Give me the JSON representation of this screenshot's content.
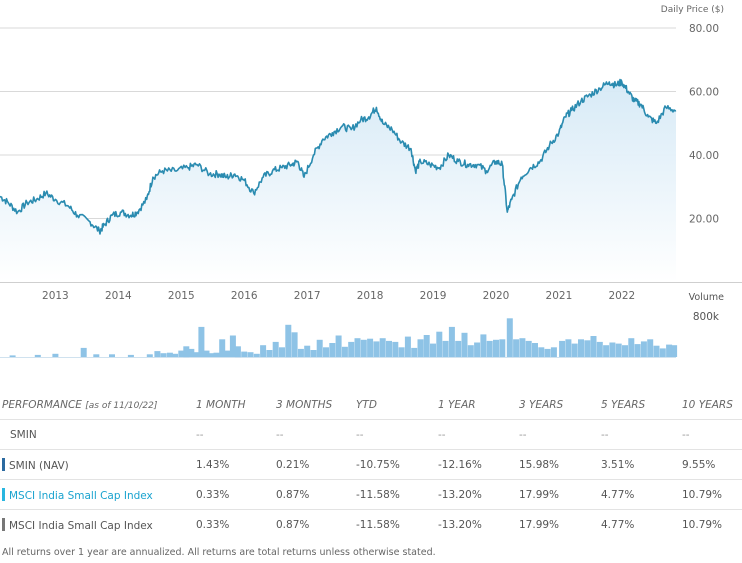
{
  "chart_data": [
    {
      "type": "area",
      "ylabel": "Daily Price ($)",
      "ylim": [
        0,
        80
      ],
      "yticks": [
        "80.00",
        "60.00",
        "40.00",
        "20.00"
      ],
      "xlim": [
        2012.12,
        2022.86
      ],
      "xticks": [
        "2013",
        "2014",
        "2015",
        "2016",
        "2017",
        "2018",
        "2019",
        "2020",
        "2021",
        "2022"
      ],
      "grid": true,
      "series": [
        {
          "color": "#2a8bb0",
          "x": [
            2012.12,
            2012.25,
            2012.4,
            2012.55,
            2012.7,
            2012.85,
            2013.0,
            2013.2,
            2013.35,
            2013.55,
            2013.7,
            2013.78,
            2013.9,
            2014.05,
            2014.2,
            2014.3,
            2014.45,
            2014.55,
            2014.7,
            2014.9,
            2015.1,
            2015.25,
            2015.45,
            2015.6,
            2015.72,
            2015.85,
            2016.0,
            2016.15,
            2016.3,
            2016.45,
            2016.6,
            2016.75,
            2016.85,
            2016.95,
            2017.1,
            2017.25,
            2017.4,
            2017.55,
            2017.7,
            2017.85,
            2017.98,
            2018.1,
            2018.2,
            2018.35,
            2018.5,
            2018.65,
            2018.72,
            2018.8,
            2018.95,
            2019.1,
            2019.25,
            2019.4,
            2019.55,
            2019.7,
            2019.85,
            2020.0,
            2020.1,
            2020.18,
            2020.25,
            2020.4,
            2020.55,
            2020.7,
            2020.85,
            2021.0,
            2021.1,
            2021.2,
            2021.35,
            2021.5,
            2021.65,
            2021.8,
            2021.9,
            2022.0,
            2022.1,
            2022.2,
            2022.3,
            2022.42,
            2022.55,
            2022.7,
            2022.86
          ],
          "values": [
            27,
            25,
            22,
            25,
            26,
            28,
            26,
            24,
            21,
            19,
            16,
            18,
            21,
            22,
            21,
            22,
            26,
            33,
            35,
            35,
            36,
            37,
            34,
            34,
            33,
            34,
            32,
            28,
            33,
            35,
            36,
            37,
            38,
            33,
            40,
            45,
            47,
            49,
            48,
            51,
            52,
            55,
            50,
            48,
            44,
            42,
            35,
            38,
            37,
            36,
            40,
            38,
            37,
            37,
            35,
            38,
            37,
            22,
            26,
            33,
            36,
            38,
            43,
            47,
            52,
            54,
            57,
            59,
            61,
            63,
            62,
            63,
            60,
            57,
            56,
            52,
            50,
            55,
            54
          ]
        }
      ]
    },
    {
      "type": "bar",
      "ylabel": "Volume",
      "yticks": [
        "800k"
      ],
      "ylim": [
        0,
        800000
      ],
      "xlim": [
        2012.12,
        2022.86
      ],
      "x": [
        2012.32,
        2012.72,
        2013.0,
        2013.45,
        2013.65,
        2013.9,
        2014.2,
        2014.5,
        2014.62,
        2014.72,
        2014.82,
        2014.9,
        2015.0,
        2015.08,
        2015.16,
        2015.25,
        2015.32,
        2015.4,
        2015.48,
        2015.56,
        2015.65,
        2015.73,
        2015.82,
        2015.9,
        2016.0,
        2016.1,
        2016.2,
        2016.3,
        2016.4,
        2016.5,
        2016.6,
        2016.7,
        2016.8,
        2016.9,
        2017.0,
        2017.1,
        2017.2,
        2017.3,
        2017.4,
        2017.5,
        2017.6,
        2017.7,
        2017.8,
        2017.9,
        2018.0,
        2018.1,
        2018.2,
        2018.3,
        2018.4,
        2018.5,
        2018.6,
        2018.7,
        2018.8,
        2018.9,
        2019.0,
        2019.1,
        2019.2,
        2019.3,
        2019.4,
        2019.5,
        2019.6,
        2019.7,
        2019.8,
        2019.9,
        2020.0,
        2020.1,
        2020.22,
        2020.32,
        2020.42,
        2020.52,
        2020.62,
        2020.72,
        2020.82,
        2020.92,
        2021.05,
        2021.15,
        2021.25,
        2021.35,
        2021.45,
        2021.55,
        2021.65,
        2021.75,
        2021.85,
        2021.95,
        2022.05,
        2022.15,
        2022.25,
        2022.35,
        2022.45,
        2022.55,
        2022.65,
        2022.75,
        2022.83
      ],
      "values": [
        30000,
        40000,
        60000,
        170000,
        50000,
        50000,
        40000,
        50000,
        110000,
        70000,
        80000,
        60000,
        120000,
        200000,
        150000,
        90000,
        560000,
        120000,
        70000,
        80000,
        330000,
        120000,
        400000,
        200000,
        100000,
        90000,
        60000,
        220000,
        130000,
        280000,
        180000,
        600000,
        460000,
        150000,
        210000,
        130000,
        320000,
        180000,
        260000,
        400000,
        190000,
        280000,
        350000,
        320000,
        340000,
        290000,
        350000,
        300000,
        280000,
        180000,
        380000,
        170000,
        330000,
        410000,
        250000,
        470000,
        300000,
        560000,
        300000,
        450000,
        220000,
        270000,
        420000,
        300000,
        320000,
        330000,
        720000,
        330000,
        350000,
        300000,
        260000,
        180000,
        150000,
        180000,
        300000,
        330000,
        250000,
        330000,
        310000,
        390000,
        280000,
        220000,
        270000,
        250000,
        220000,
        350000,
        240000,
        290000,
        330000,
        210000,
        160000,
        230000,
        220000
      ]
    }
  ],
  "table": {
    "headers": [
      "PERFORMANCE",
      "[as of 11/10/22]",
      "1 MONTH",
      "3 MONTHS",
      "YTD",
      "1 YEAR",
      "3 YEARS",
      "5 YEARS",
      "10 YEARS"
    ],
    "rows": [
      {
        "label": "SMIN",
        "swatch": "",
        "label_color": "#555555",
        "values": [
          "--",
          "--",
          "--",
          "--",
          "--",
          "--",
          "--"
        ]
      },
      {
        "label": "SMIN (NAV)",
        "swatch": "#2c6aa0",
        "label_color": "#555555",
        "values": [
          "1.43%",
          "0.21%",
          "-10.75%",
          "-12.16%",
          "15.98%",
          "3.51%",
          "9.55%"
        ]
      },
      {
        "label": "MSCI India Small Cap Index",
        "swatch": "#29b6e0",
        "label_color": "#1aa3cf",
        "values": [
          "0.33%",
          "0.87%",
          "-11.58%",
          "-13.20%",
          "17.99%",
          "4.77%",
          "10.79%"
        ]
      },
      {
        "label": "MSCI India Small Cap Index",
        "swatch": "#777777",
        "label_color": "#555555",
        "values": [
          "0.33%",
          "0.87%",
          "-11.58%",
          "-13.20%",
          "17.99%",
          "4.77%",
          "10.79%"
        ]
      }
    ]
  },
  "footnote": "All returns over 1 year are annualized. All returns are total returns unless otherwise stated."
}
